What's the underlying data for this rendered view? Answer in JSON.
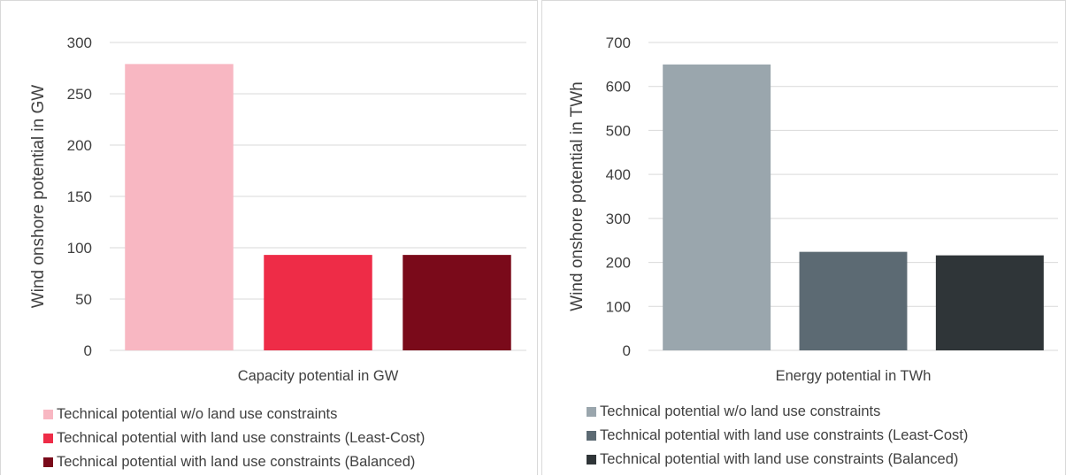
{
  "chart_data": [
    {
      "type": "bar",
      "categories": [
        "Technical potential w/o land use constraints",
        "Technical potential with land use constraints (Least-Cost)",
        "Technical potential with land use constraints (Balanced)"
      ],
      "values": [
        279,
        93,
        93
      ],
      "colors": [
        "#f8b7c2",
        "#ee2c47",
        "#7a0a1a"
      ],
      "xlabel": "Capacity potential in GW",
      "ylabel": "Wind onshore potential in GW",
      "ylim": [
        0,
        300
      ],
      "yticks": [
        "0",
        "50",
        "100",
        "150",
        "200",
        "250",
        "300"
      ],
      "grid": true,
      "legend_position": "bottom",
      "legend": [
        "Technical potential w/o land use constraints",
        "Technical potential with land use constraints (Least-Cost)",
        "Technical potential with land use constraints (Balanced)"
      ]
    },
    {
      "type": "bar",
      "categories": [
        "Technical potential w/o land use constraints",
        "Technical potential with land use constraints (Least-Cost)",
        "Technical potential with land use constraints (Balanced)"
      ],
      "values": [
        650,
        224,
        216
      ],
      "colors": [
        "#9aa6ad",
        "#5c6a73",
        "#2f3538"
      ],
      "xlabel": "Energy potential in TWh",
      "ylabel": "Wind onshore potential in TWh",
      "ylim": [
        0,
        700
      ],
      "yticks": [
        "0",
        "100",
        "200",
        "300",
        "400",
        "500",
        "600",
        "700"
      ],
      "grid": true,
      "legend_position": "bottom",
      "legend": [
        "Technical potential w/o land use constraints",
        "Technical potential with land use constraints (Least-Cost)",
        "Technical potential with land use constraints (Balanced)"
      ]
    }
  ]
}
